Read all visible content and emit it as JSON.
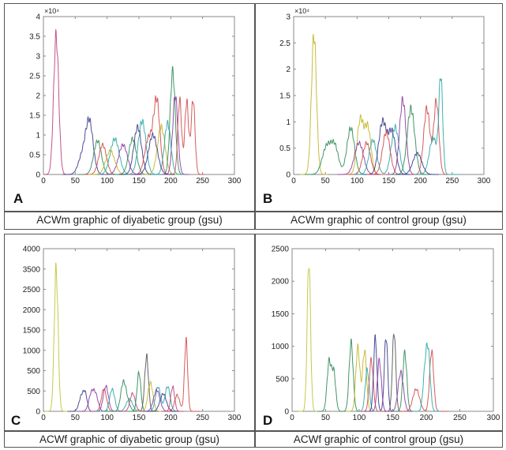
{
  "figure": {
    "panels": [
      {
        "letter": "A",
        "caption": "ACWm graphic of diyabetic group (gsu)"
      },
      {
        "letter": "B",
        "caption": "ACWm graphic of control group (gsu)"
      },
      {
        "letter": "C",
        "caption": "ACWf graphic of diyabetic group (gsu)"
      },
      {
        "letter": "D",
        "caption": "ACWf graphic of control group (gsu)"
      }
    ]
  },
  "chart_data": [
    {
      "type": "line",
      "panel": "A",
      "title": "ACWm graphic of diyabetic group (gsu)",
      "xlabel": "",
      "ylabel": "",
      "xlim": [
        0,
        300
      ],
      "ylim": [
        0,
        4
      ],
      "y_multiplier_label": "×10⁴",
      "xticks": [
        "0",
        "50",
        "100",
        "150",
        "200",
        "250",
        "300"
      ],
      "yticks": [
        "0",
        "0.5",
        "1",
        "1.5",
        "2",
        "2.5",
        "3",
        "3.5",
        "4"
      ],
      "grid": false,
      "series": [
        {
          "name": "s1",
          "color": "#c0407a",
          "peaks": [
            [
              20,
              3.5,
              4
            ]
          ]
        },
        {
          "name": "s2",
          "color": "#3a3a8c",
          "peaks": [
            [
              72,
              1.35,
              6
            ],
            [
              60,
              0.4,
              6
            ]
          ]
        },
        {
          "name": "s3",
          "color": "#2e8b57",
          "peaks": [
            [
              85,
              0.85,
              6
            ]
          ]
        },
        {
          "name": "s4",
          "color": "#d14a4a",
          "peaks": [
            [
              93,
              0.75,
              6
            ]
          ]
        },
        {
          "name": "s5",
          "color": "#2aa7a7",
          "peaks": [
            [
              112,
              0.9,
              7
            ]
          ]
        },
        {
          "name": "s6",
          "color": "#8c3aa0",
          "peaks": [
            [
              125,
              0.75,
              7
            ]
          ]
        },
        {
          "name": "s7",
          "color": "#c2b52a",
          "peaks": [
            [
              105,
              0.6,
              7
            ]
          ]
        },
        {
          "name": "s8",
          "color": "#2e8b57",
          "peaks": [
            [
              140,
              0.9,
              6
            ]
          ]
        },
        {
          "name": "s9",
          "color": "#2aa7a7",
          "peaks": [
            [
              155,
              1.35,
              6
            ]
          ]
        },
        {
          "name": "s10",
          "color": "#3a3a8c",
          "peaks": [
            [
              148,
              1.2,
              6
            ]
          ]
        },
        {
          "name": "s11",
          "color": "#d14a4a",
          "peaks": [
            [
              178,
              1.85,
              5
            ],
            [
              165,
              0.9,
              6
            ]
          ]
        },
        {
          "name": "s12",
          "color": "#c2b52a",
          "peaks": [
            [
              185,
              1.2,
              6
            ]
          ]
        },
        {
          "name": "s13",
          "color": "#2e8b57",
          "peaks": [
            [
              203,
              2.6,
              4
            ]
          ]
        },
        {
          "name": "s14",
          "color": "#8c3aa0",
          "peaks": [
            [
              207,
              2.0,
              4
            ]
          ]
        },
        {
          "name": "s15",
          "color": "#d14a4a",
          "peaks": [
            [
              214,
              1.9,
              3
            ],
            [
              225,
              1.85,
              3
            ],
            [
              235,
              1.9,
              3
            ]
          ]
        },
        {
          "name": "s16",
          "color": "#2aa7a7",
          "peaks": [
            [
              195,
              1.3,
              5
            ]
          ]
        },
        {
          "name": "s17",
          "color": "#3a3a8c",
          "peaks": [
            [
              172,
              1.0,
              7
            ]
          ]
        }
      ]
    },
    {
      "type": "line",
      "panel": "B",
      "title": "ACWm graphic of control group (gsu)",
      "xlabel": "",
      "ylabel": "",
      "xlim": [
        0,
        300
      ],
      "ylim": [
        0,
        3
      ],
      "y_multiplier_label": "×10⁴",
      "xticks": [
        "0",
        "50",
        "100",
        "150",
        "200",
        "250",
        "300"
      ],
      "yticks": [
        "0",
        "0.5",
        "1",
        "1.5",
        "2",
        "2.5",
        "3"
      ],
      "grid": false,
      "series": [
        {
          "name": "s1",
          "color": "#c2b52a",
          "peaks": [
            [
              32,
              2.65,
              4
            ]
          ]
        },
        {
          "name": "s2",
          "color": "#2e8b57",
          "peaks": [
            [
              52,
              0.52,
              7
            ],
            [
              65,
              0.5,
              6
            ],
            [
              90,
              0.88,
              6
            ]
          ]
        },
        {
          "name": "s3",
          "color": "#c2b52a",
          "peaks": [
            [
              105,
              1.02,
              5
            ],
            [
              117,
              0.88,
              5
            ]
          ]
        },
        {
          "name": "s4",
          "color": "#8c3aa0",
          "peaks": [
            [
              103,
              0.6,
              7
            ]
          ]
        },
        {
          "name": "s5",
          "color": "#d14a4a",
          "peaks": [
            [
              115,
              0.6,
              6
            ]
          ]
        },
        {
          "name": "s6",
          "color": "#2aa7a7",
          "peaks": [
            [
              125,
              0.65,
              6
            ],
            [
              160,
              0.9,
              6
            ]
          ]
        },
        {
          "name": "s7",
          "color": "#3a3a8c",
          "peaks": [
            [
              140,
              0.98,
              6
            ],
            [
              155,
              0.8,
              6
            ]
          ]
        },
        {
          "name": "s8",
          "color": "#d14a4a",
          "peaks": [
            [
              146,
              0.8,
              6
            ]
          ]
        },
        {
          "name": "s9",
          "color": "#8c3aa0",
          "peaks": [
            [
              172,
              1.42,
              5
            ]
          ]
        },
        {
          "name": "s10",
          "color": "#2e8b57",
          "peaks": [
            [
              185,
              1.25,
              6
            ]
          ]
        },
        {
          "name": "s11",
          "color": "#d14a4a",
          "peaks": [
            [
              210,
              1.25,
              5
            ],
            [
              225,
              1.38,
              4
            ]
          ]
        },
        {
          "name": "s12",
          "color": "#2aa7a7",
          "peaks": [
            [
              232,
              1.8,
              3
            ],
            [
              220,
              0.7,
              6
            ]
          ]
        },
        {
          "name": "s13",
          "color": "#3a3a8c",
          "peaks": [
            [
              195,
              0.4,
              7
            ]
          ]
        }
      ]
    },
    {
      "type": "line",
      "panel": "C",
      "title": "ACWf graphic of diyabetic group (gsu)",
      "xlabel": "",
      "ylabel": "",
      "xlim": [
        0,
        300
      ],
      "ylim": [
        0,
        4000
      ],
      "xticks": [
        "0",
        "50",
        "100",
        "150",
        "200",
        "250",
        "300"
      ],
      "yticks": [
        "0",
        "500",
        "500",
        "1000",
        "1500",
        "2000",
        "2500",
        "3500",
        "4000"
      ],
      "grid": false,
      "series": [
        {
          "name": "s1",
          "color": "#c2c23a",
          "peaks": [
            [
              20,
              3500,
              3
            ]
          ]
        },
        {
          "name": "s2",
          "color": "#3a3a8c",
          "peaks": [
            [
              60,
              380,
              4
            ],
            [
              66,
              350,
              3
            ]
          ]
        },
        {
          "name": "s3",
          "color": "#8c3aa0",
          "peaks": [
            [
              75,
              400,
              4
            ],
            [
              82,
              380,
              4
            ]
          ]
        },
        {
          "name": "s4",
          "color": "#d14a4a",
          "peaks": [
            [
              95,
              550,
              4
            ]
          ]
        },
        {
          "name": "s5",
          "color": "#8c3aa0",
          "peaks": [
            [
              98,
              620,
              4
            ]
          ]
        },
        {
          "name": "s6",
          "color": "#2aa7a7",
          "peaks": [
            [
              108,
              540,
              4
            ],
            [
              135,
              300,
              5
            ]
          ]
        },
        {
          "name": "s7",
          "color": "#2e8b57",
          "peaks": [
            [
              125,
              550,
              4
            ],
            [
              130,
              280,
              5
            ]
          ]
        },
        {
          "name": "s8",
          "color": "#c0407a",
          "peaks": [
            [
              140,
              440,
              4
            ]
          ]
        },
        {
          "name": "s9",
          "color": "#2e8b57",
          "peaks": [
            [
              150,
              950,
              3
            ]
          ]
        },
        {
          "name": "s10",
          "color": "#555555",
          "peaks": [
            [
              162,
              1350,
              3
            ]
          ]
        },
        {
          "name": "s11",
          "color": "#c2b52a",
          "peaks": [
            [
              168,
              700,
              4
            ]
          ]
        },
        {
          "name": "s12",
          "color": "#2aa7a7",
          "peaks": [
            [
              180,
              600,
              4
            ],
            [
              195,
              610,
              4
            ]
          ]
        },
        {
          "name": "s13",
          "color": "#8c3aa0",
          "peaks": [
            [
              178,
              520,
              5
            ]
          ]
        },
        {
          "name": "s14",
          "color": "#3a3a8c",
          "peaks": [
            [
              188,
              430,
              5
            ]
          ]
        },
        {
          "name": "s15",
          "color": "#c0407a",
          "peaks": [
            [
              203,
              600,
              3
            ]
          ]
        },
        {
          "name": "s16",
          "color": "#d14a4a",
          "peaks": [
            [
              210,
              400,
              4
            ],
            [
              224,
              1750,
              2.5
            ]
          ]
        }
      ]
    },
    {
      "type": "line",
      "panel": "D",
      "title": "ACWf graphic of control group (gsu)",
      "xlabel": "",
      "ylabel": "",
      "xlim": [
        0,
        300
      ],
      "ylim": [
        0,
        2500
      ],
      "xticks": [
        "0",
        "50",
        "100",
        "150",
        "200",
        "250",
        "300"
      ],
      "yticks": [
        "0",
        "500",
        "1000",
        "1500",
        "2000",
        "2500"
      ],
      "grid": false,
      "series": [
        {
          "name": "s1",
          "color": "#c2c23a",
          "peaks": [
            [
              25,
              2320,
              2.5
            ]
          ]
        },
        {
          "name": "s2",
          "color": "#2e8b57",
          "peaks": [
            [
              55,
              740,
              3
            ],
            [
              62,
              600,
              3
            ],
            [
              88,
              1060,
              3
            ]
          ]
        },
        {
          "name": "s3",
          "color": "#c2b52a",
          "peaks": [
            [
              98,
              980,
              3
            ],
            [
              108,
              930,
              3
            ]
          ]
        },
        {
          "name": "s4",
          "color": "#2aa7a7",
          "peaks": [
            [
              112,
              640,
              3
            ]
          ]
        },
        {
          "name": "s5",
          "color": "#d14a4a",
          "peaks": [
            [
              118,
              790,
              3
            ]
          ]
        },
        {
          "name": "s6",
          "color": "#3a3a8c",
          "peaks": [
            [
              124,
              1130,
              2.5
            ],
            [
              140,
              1150,
              2.5
            ]
          ]
        },
        {
          "name": "s7",
          "color": "#8c3aa0",
          "peaks": [
            [
              130,
              780,
              3
            ]
          ]
        },
        {
          "name": "s8",
          "color": "#555555",
          "peaks": [
            [
              152,
              1230,
              2.5
            ]
          ]
        },
        {
          "name": "s9",
          "color": "#2e8b57",
          "peaks": [
            [
              168,
              900,
              3
            ]
          ]
        },
        {
          "name": "s10",
          "color": "#8c3aa0",
          "peaks": [
            [
              162,
              600,
              4
            ]
          ]
        },
        {
          "name": "s11",
          "color": "#d14a4a",
          "peaks": [
            [
              185,
              340,
              5
            ],
            [
              208,
              930,
              3
            ]
          ]
        },
        {
          "name": "s12",
          "color": "#2aa7a7",
          "peaks": [
            [
              203,
              850,
              3
            ],
            [
              198,
              550,
              3
            ]
          ]
        }
      ]
    }
  ]
}
